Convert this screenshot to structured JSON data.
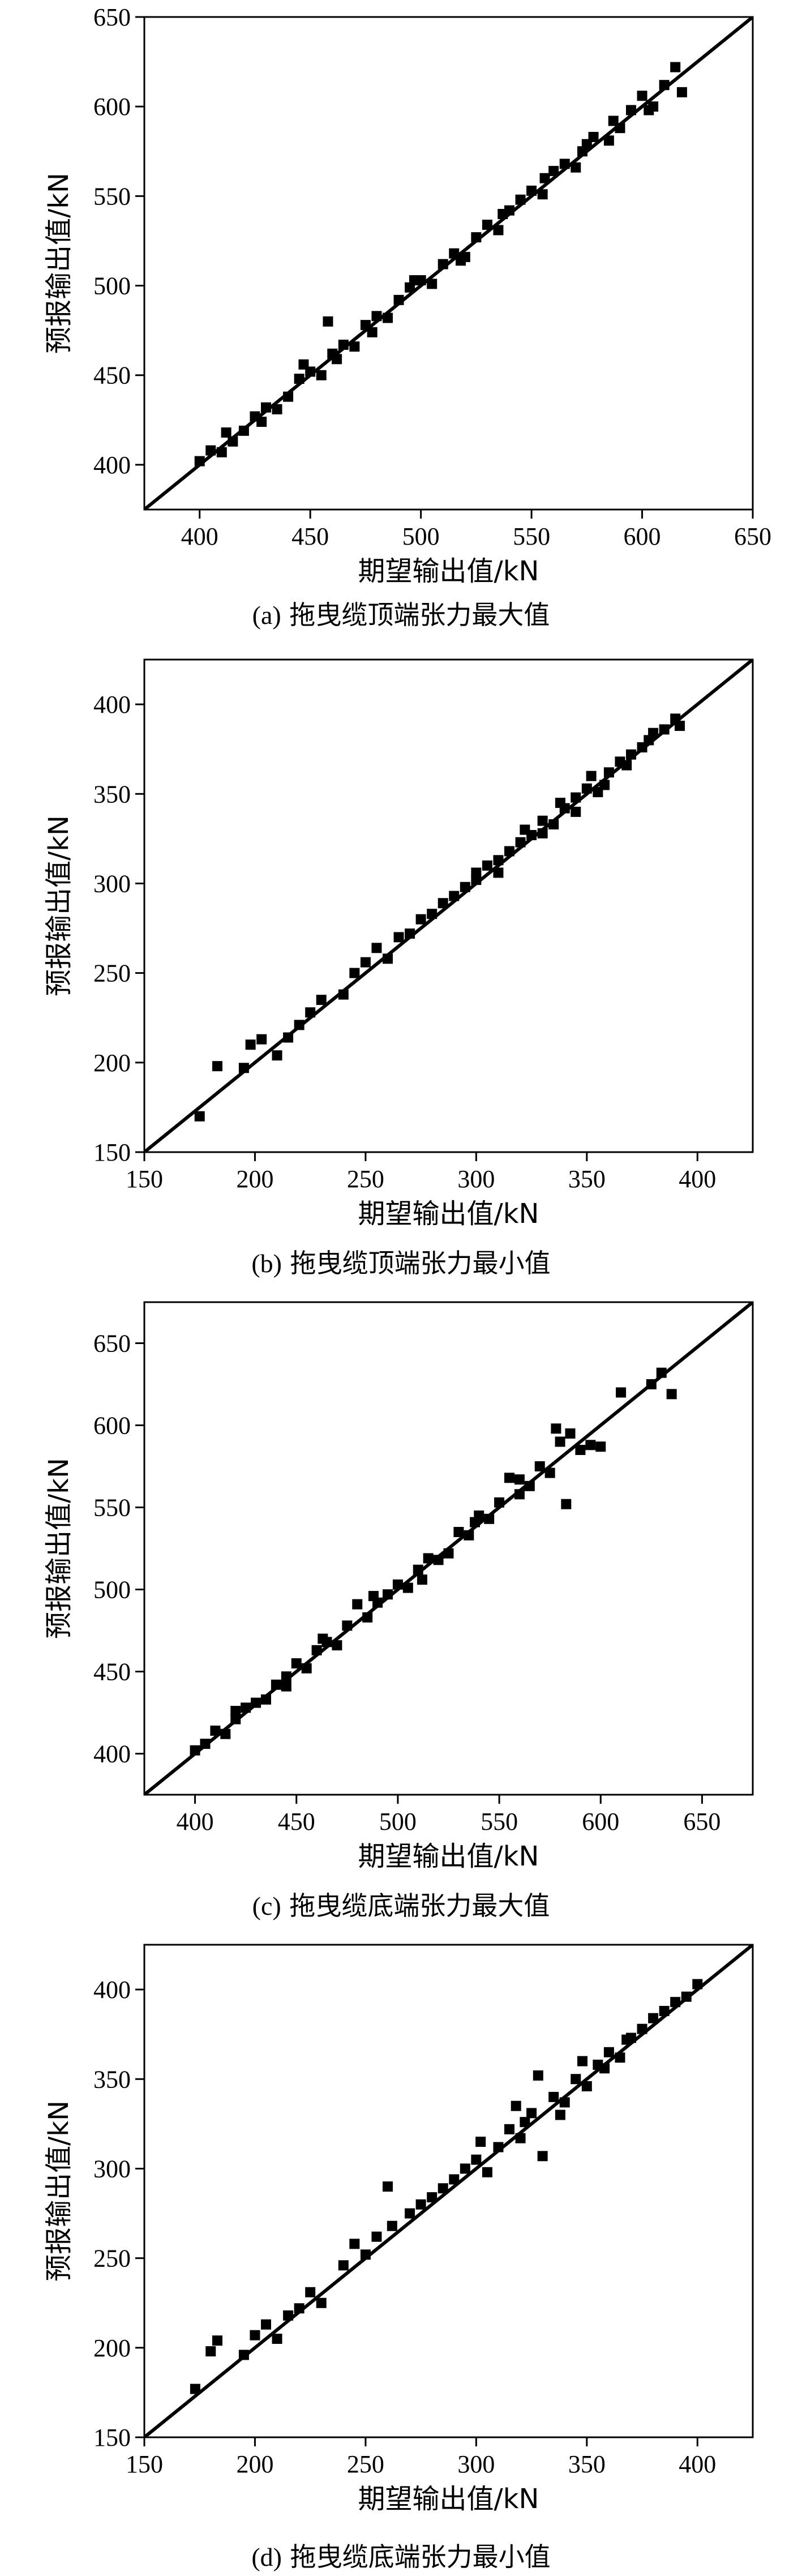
{
  "chart_data": [
    {
      "type": "scatter",
      "caption_letter": "(a)",
      "caption_text": "拖曳缆顶端张力最大值",
      "xlabel": "期望输出值/kN",
      "ylabel": "预报输出值/kN",
      "xlim": [
        375,
        650
      ],
      "ylim": [
        375,
        650
      ],
      "xticks": [
        400,
        450,
        500,
        550,
        600,
        650
      ],
      "yticks": [
        400,
        450,
        500,
        550,
        600,
        650
      ],
      "grid": false,
      "reference_line": "y = x",
      "marker": "filled-square",
      "points": [
        [
          400,
          402
        ],
        [
          405,
          408
        ],
        [
          410,
          407
        ],
        [
          415,
          413
        ],
        [
          420,
          419
        ],
        [
          425,
          427
        ],
        [
          430,
          432
        ],
        [
          435,
          431
        ],
        [
          440,
          438
        ],
        [
          445,
          448
        ],
        [
          450,
          452
        ],
        [
          455,
          450
        ],
        [
          458,
          480
        ],
        [
          460,
          462
        ],
        [
          465,
          467
        ],
        [
          470,
          466
        ],
        [
          475,
          478
        ],
        [
          480,
          483
        ],
        [
          485,
          482
        ],
        [
          490,
          492
        ],
        [
          495,
          499
        ],
        [
          500,
          503
        ],
        [
          505,
          501
        ],
        [
          510,
          512
        ],
        [
          515,
          518
        ],
        [
          520,
          516
        ],
        [
          525,
          527
        ],
        [
          530,
          534
        ],
        [
          535,
          531
        ],
        [
          540,
          542
        ],
        [
          545,
          548
        ],
        [
          550,
          553
        ],
        [
          555,
          551
        ],
        [
          560,
          564
        ],
        [
          565,
          568
        ],
        [
          570,
          566
        ],
        [
          575,
          579
        ],
        [
          578,
          583
        ],
        [
          585,
          581
        ],
        [
          590,
          588
        ],
        [
          595,
          598
        ],
        [
          600,
          606
        ],
        [
          605,
          600
        ],
        [
          610,
          612
        ],
        [
          615,
          622
        ],
        [
          618,
          608
        ],
        [
          412,
          418
        ],
        [
          428,
          424
        ],
        [
          447,
          456
        ],
        [
          462,
          459
        ],
        [
          478,
          474
        ],
        [
          497,
          503
        ],
        [
          518,
          514
        ],
        [
          537,
          540
        ],
        [
          556,
          560
        ],
        [
          573,
          575
        ],
        [
          587,
          592
        ],
        [
          603,
          598
        ]
      ]
    },
    {
      "type": "scatter",
      "caption_letter": "(b)",
      "caption_text": "拖曳缆顶端张力最小值",
      "xlabel": "期望输出值/kN",
      "ylabel": "预报输出值/kN",
      "xlim": [
        150,
        425
      ],
      "ylim": [
        150,
        425
      ],
      "xticks": [
        150,
        200,
        250,
        300,
        350,
        400
      ],
      "yticks": [
        150,
        200,
        250,
        300,
        350,
        400
      ],
      "grid": false,
      "reference_line": "y = x",
      "marker": "filled-square",
      "points": [
        [
          175,
          170
        ],
        [
          183,
          198
        ],
        [
          195,
          197
        ],
        [
          198,
          210
        ],
        [
          203,
          213
        ],
        [
          210,
          204
        ],
        [
          215,
          214
        ],
        [
          220,
          221
        ],
        [
          225,
          228
        ],
        [
          230,
          235
        ],
        [
          240,
          238
        ],
        [
          245,
          250
        ],
        [
          250,
          256
        ],
        [
          255,
          264
        ],
        [
          260,
          258
        ],
        [
          265,
          270
        ],
        [
          270,
          272
        ],
        [
          275,
          280
        ],
        [
          280,
          283
        ],
        [
          285,
          289
        ],
        [
          290,
          293
        ],
        [
          295,
          298
        ],
        [
          300,
          302
        ],
        [
          305,
          310
        ],
        [
          310,
          306
        ],
        [
          315,
          318
        ],
        [
          320,
          323
        ],
        [
          325,
          327
        ],
        [
          330,
          335
        ],
        [
          335,
          333
        ],
        [
          340,
          342
        ],
        [
          345,
          348
        ],
        [
          350,
          353
        ],
        [
          355,
          351
        ],
        [
          360,
          362
        ],
        [
          365,
          368
        ],
        [
          370,
          372
        ],
        [
          375,
          376
        ],
        [
          380,
          384
        ],
        [
          385,
          386
        ],
        [
          390,
          392
        ],
        [
          392,
          388
        ],
        [
          322,
          330
        ],
        [
          338,
          345
        ],
        [
          352,
          360
        ],
        [
          358,
          355
        ],
        [
          368,
          366
        ],
        [
          378,
          380
        ],
        [
          310,
          313
        ],
        [
          300,
          306
        ],
        [
          330,
          328
        ],
        [
          345,
          340
        ]
      ]
    },
    {
      "type": "scatter",
      "caption_letter": "(c)",
      "caption_text": "拖曳缆底端张力最大值",
      "xlabel": "期望输出值/kN",
      "ylabel": "预报输出值/kN",
      "xlim": [
        375,
        675
      ],
      "ylim": [
        375,
        675
      ],
      "xticks": [
        400,
        450,
        500,
        550,
        600,
        650
      ],
      "yticks": [
        400,
        450,
        500,
        550,
        600,
        650
      ],
      "grid": false,
      "reference_line": "y = x",
      "marker": "filled-square",
      "points": [
        [
          400,
          402
        ],
        [
          405,
          406
        ],
        [
          410,
          414
        ],
        [
          415,
          412
        ],
        [
          420,
          421
        ],
        [
          425,
          428
        ],
        [
          430,
          431
        ],
        [
          435,
          433
        ],
        [
          440,
          442
        ],
        [
          445,
          447
        ],
        [
          450,
          455
        ],
        [
          455,
          452
        ],
        [
          460,
          463
        ],
        [
          465,
          468
        ],
        [
          470,
          466
        ],
        [
          475,
          478
        ],
        [
          480,
          491
        ],
        [
          485,
          483
        ],
        [
          490,
          492
        ],
        [
          495,
          497
        ],
        [
          500,
          503
        ],
        [
          505,
          501
        ],
        [
          510,
          512
        ],
        [
          515,
          519
        ],
        [
          520,
          518
        ],
        [
          525,
          522
        ],
        [
          530,
          535
        ],
        [
          535,
          533
        ],
        [
          540,
          545
        ],
        [
          545,
          543
        ],
        [
          550,
          553
        ],
        [
          555,
          568
        ],
        [
          560,
          567
        ],
        [
          565,
          563
        ],
        [
          570,
          575
        ],
        [
          575,
          571
        ],
        [
          580,
          590
        ],
        [
          583,
          552
        ],
        [
          585,
          595
        ],
        [
          590,
          585
        ],
        [
          595,
          588
        ],
        [
          600,
          587
        ],
        [
          610,
          620
        ],
        [
          625,
          625
        ],
        [
          630,
          632
        ],
        [
          635,
          619
        ],
        [
          420,
          426
        ],
        [
          445,
          441
        ],
        [
          463,
          470
        ],
        [
          488,
          496
        ],
        [
          512,
          506
        ],
        [
          538,
          541
        ],
        [
          560,
          558
        ],
        [
          578,
          598
        ]
      ]
    },
    {
      "type": "scatter",
      "caption_letter": "(d)",
      "caption_text": "拖曳缆底端张力最小值",
      "xlabel": "期望输出值/kN",
      "ylabel": "预报输出值/kN",
      "xlim": [
        150,
        425
      ],
      "ylim": [
        150,
        425
      ],
      "xticks": [
        150,
        200,
        250,
        300,
        350,
        400
      ],
      "yticks": [
        150,
        200,
        250,
        300,
        350,
        400
      ],
      "grid": false,
      "reference_line": "y = x",
      "marker": "filled-square",
      "points": [
        [
          173,
          177
        ],
        [
          180,
          198
        ],
        [
          183,
          204
        ],
        [
          195,
          196
        ],
        [
          200,
          207
        ],
        [
          205,
          213
        ],
        [
          210,
          205
        ],
        [
          215,
          218
        ],
        [
          220,
          222
        ],
        [
          225,
          231
        ],
        [
          230,
          225
        ],
        [
          240,
          246
        ],
        [
          245,
          258
        ],
        [
          250,
          252
        ],
        [
          255,
          262
        ],
        [
          260,
          290
        ],
        [
          262,
          268
        ],
        [
          270,
          275
        ],
        [
          275,
          280
        ],
        [
          280,
          284
        ],
        [
          285,
          289
        ],
        [
          290,
          294
        ],
        [
          295,
          300
        ],
        [
          300,
          305
        ],
        [
          305,
          298
        ],
        [
          310,
          312
        ],
        [
          315,
          322
        ],
        [
          320,
          317
        ],
        [
          325,
          331
        ],
        [
          330,
          307
        ],
        [
          335,
          340
        ],
        [
          340,
          337
        ],
        [
          345,
          350
        ],
        [
          350,
          346
        ],
        [
          355,
          358
        ],
        [
          360,
          365
        ],
        [
          365,
          362
        ],
        [
          370,
          373
        ],
        [
          375,
          378
        ],
        [
          380,
          384
        ],
        [
          385,
          388
        ],
        [
          390,
          393
        ],
        [
          395,
          396
        ],
        [
          400,
          403
        ],
        [
          328,
          352
        ],
        [
          338,
          330
        ],
        [
          348,
          360
        ],
        [
          358,
          356
        ],
        [
          368,
          372
        ],
        [
          318,
          335
        ],
        [
          302,
          315
        ],
        [
          322,
          326
        ]
      ]
    }
  ]
}
